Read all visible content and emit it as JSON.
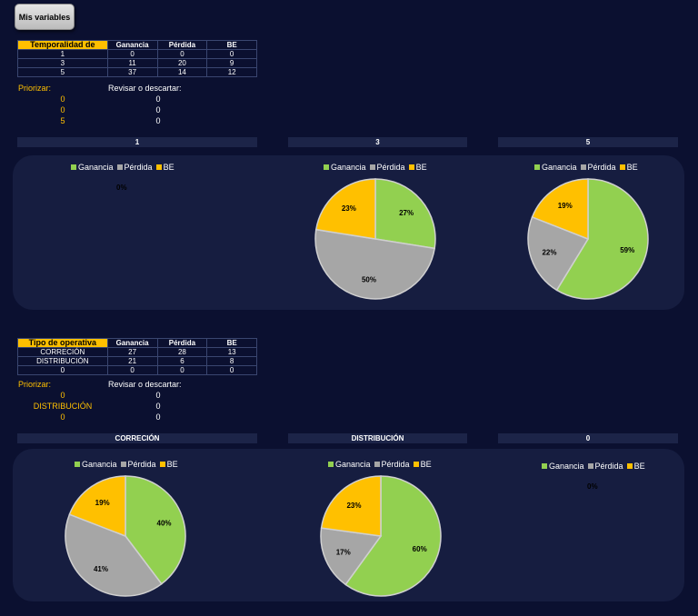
{
  "button": {
    "label": "Mis variables"
  },
  "colors": {
    "ganancia": "#92d050",
    "perdida": "#a6a6a6",
    "be": "#ffc000",
    "label_text": "#000000",
    "accent": "#ffc000"
  },
  "legend": [
    "Ganancia",
    "Pérdida",
    "BE"
  ],
  "section1": {
    "table": {
      "headers": [
        "Temporalidad de",
        "Ganancia",
        "Pérdida",
        "BE"
      ],
      "rows": [
        [
          "1",
          "0",
          "0",
          "0"
        ],
        [
          "3",
          "11",
          "20",
          "9"
        ],
        [
          "5",
          "37",
          "14",
          "12"
        ]
      ]
    },
    "priorizar_label": "Priorizar:",
    "revisar_label": "Revisar o descartar:",
    "priorizar": [
      "0",
      "0",
      "5"
    ],
    "revisar": [
      "0",
      "0",
      "0"
    ],
    "chart_headers": [
      "1",
      "3",
      "5"
    ]
  },
  "section2": {
    "table": {
      "headers": [
        "Tipo de operativa",
        "Ganancia",
        "Pérdida",
        "BE"
      ],
      "rows": [
        [
          "CORRECIÓN",
          "27",
          "28",
          "13"
        ],
        [
          "DISTRIBUCIÓN",
          "21",
          "6",
          "8"
        ],
        [
          "0",
          "0",
          "0",
          "0"
        ]
      ]
    },
    "priorizar_label": "Priorizar:",
    "revisar_label": "Revisar o descartar:",
    "priorizar": [
      "0",
      "DISTRIBUCIÓN",
      "0"
    ],
    "revisar": [
      "0",
      "0",
      "0"
    ],
    "chart_headers": [
      "CORRECIÓN",
      "DISTRIBUCIÓN",
      "0"
    ]
  },
  "chart_data": [
    {
      "type": "pie",
      "title": "1",
      "categories": [
        "Ganancia",
        "Pérdida",
        "BE"
      ],
      "values": [
        0,
        0,
        0
      ],
      "labels": [
        "0%"
      ]
    },
    {
      "type": "pie",
      "title": "3",
      "categories": [
        "Ganancia",
        "Pérdida",
        "BE"
      ],
      "values": [
        11,
        20,
        9
      ],
      "labels": [
        "27%",
        "50%",
        "23%"
      ]
    },
    {
      "type": "pie",
      "title": "5",
      "categories": [
        "Ganancia",
        "Pérdida",
        "BE"
      ],
      "values": [
        37,
        14,
        12
      ],
      "labels": [
        "59%",
        "22%",
        "19%"
      ]
    },
    {
      "type": "pie",
      "title": "CORRECIÓN",
      "categories": [
        "Ganancia",
        "Pérdida",
        "BE"
      ],
      "values": [
        27,
        28,
        13
      ],
      "labels": [
        "40%",
        "41%",
        "19%"
      ]
    },
    {
      "type": "pie",
      "title": "DISTRIBUCIÓN",
      "categories": [
        "Ganancia",
        "Pérdida",
        "BE"
      ],
      "values": [
        21,
        6,
        8
      ],
      "labels": [
        "60%",
        "17%",
        "23%"
      ]
    },
    {
      "type": "pie",
      "title": "0",
      "categories": [
        "Ganancia",
        "Pérdida",
        "BE"
      ],
      "values": [
        0,
        0,
        0
      ],
      "labels": [
        "0%"
      ]
    }
  ]
}
